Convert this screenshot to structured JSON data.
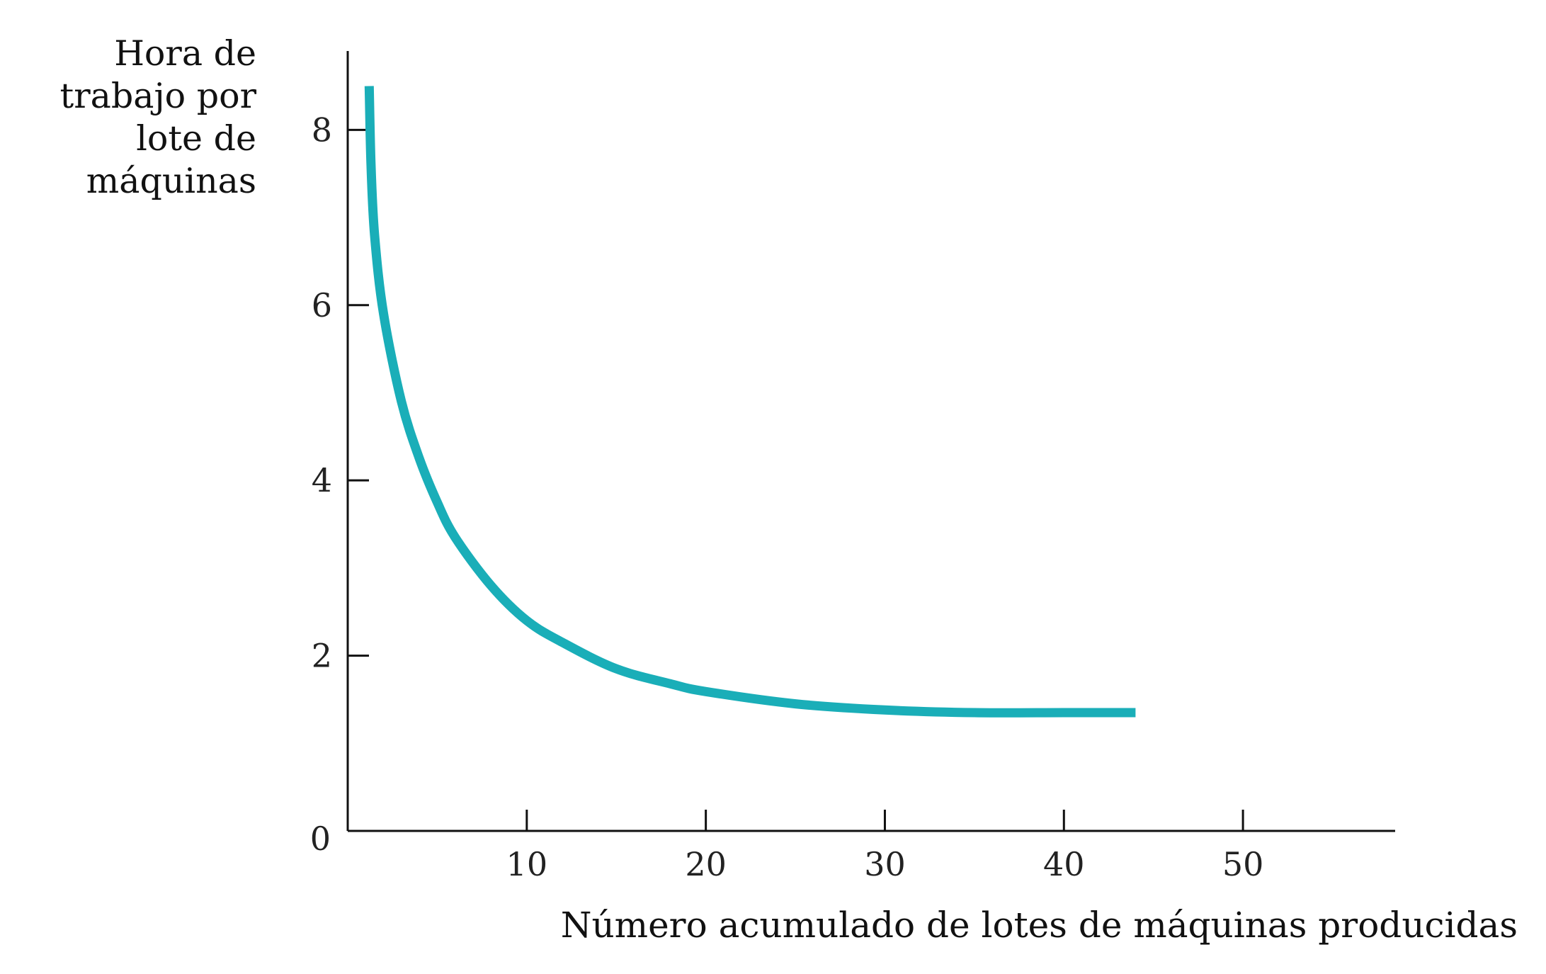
{
  "chart_data": {
    "type": "line",
    "title": "",
    "xlabel": "Número acumulado de lotes de máquinas producidas",
    "ylabel_lines": [
      "Hora de",
      "trabajo por",
      "lote de",
      "máquinas"
    ],
    "xlim": [
      0,
      58.5
    ],
    "ylim": [
      0,
      8.9
    ],
    "xticks": [
      10,
      20,
      30,
      40,
      50
    ],
    "xtick_labels": [
      "10",
      "20",
      "30",
      "40",
      "50"
    ],
    "yticks": [
      8,
      6,
      4,
      2
    ],
    "ytick_labels": [
      "8",
      "6",
      "4",
      "2"
    ],
    "origin_label": "0",
    "grid": false,
    "legend": "none",
    "curve_color": "#1aaeb8",
    "series": [
      {
        "x": [
          1.2,
          1.3,
          1.5,
          2,
          3,
          4,
          5,
          6,
          8,
          10,
          12,
          15,
          18,
          20,
          25,
          30,
          35,
          40,
          44
        ],
        "values": [
          8.5,
          7.6,
          6.8,
          5.9,
          4.9,
          4.25,
          3.75,
          3.35,
          2.8,
          2.4,
          2.15,
          1.85,
          1.68,
          1.59,
          1.45,
          1.38,
          1.35,
          1.35,
          1.35
        ]
      }
    ]
  }
}
